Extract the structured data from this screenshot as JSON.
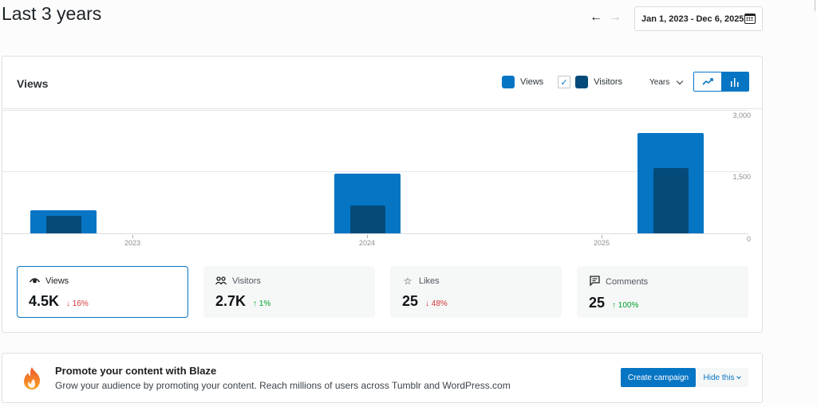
{
  "header": {
    "title": "Last 3 years",
    "date_range": "Jan 1, 2023 - Dec 6, 2025",
    "prev_arrow": "←",
    "next_arrow": "→"
  },
  "chart_card": {
    "title": "Views",
    "legend": [
      {
        "label": "Views",
        "color": "#0675c4"
      },
      {
        "label": "Visitors",
        "color": "#044b7a",
        "checked": true
      }
    ],
    "period": "Years",
    "chart_toggle": {
      "line": "line-chart",
      "bar": "bar-chart",
      "active": "bar"
    }
  },
  "chart_data": {
    "type": "bar",
    "title": "Views",
    "categories": [
      "2023",
      "2024",
      "2025"
    ],
    "series": [
      {
        "name": "Views",
        "color": "#0675c4",
        "values": [
          560,
          1460,
          2440
        ]
      },
      {
        "name": "Visitors",
        "color": "#044b7a",
        "values": [
          420,
          670,
          1580
        ]
      }
    ],
    "y_ticks": [
      "3,000",
      "1,500",
      "0"
    ],
    "ylim": [
      0,
      3000
    ],
    "y_axis_position": "right",
    "grid": true,
    "xlabel": "",
    "ylabel": ""
  },
  "stats": [
    {
      "icon": "eye-icon",
      "label": "Views",
      "value": "4.5K",
      "delta": "↓ 16%",
      "direction": "down",
      "active": true
    },
    {
      "icon": "people-icon",
      "label": "Visitors",
      "value": "2.7K",
      "delta": "↑ 1%",
      "direction": "up",
      "active": false
    },
    {
      "icon": "star-icon",
      "label": "Likes",
      "value": "25",
      "delta": "↓ 48%",
      "direction": "down",
      "active": false
    },
    {
      "icon": "comment-icon",
      "label": "Comments",
      "value": "25",
      "delta": "↑ 100%",
      "direction": "up",
      "active": false
    }
  ],
  "promo": {
    "title": "Promote your content with Blaze",
    "description": "Grow your audience by promoting your content. Reach millions of users across Tumblr and WordPress.com",
    "cta": "Create campaign",
    "hide": "Hide this"
  }
}
